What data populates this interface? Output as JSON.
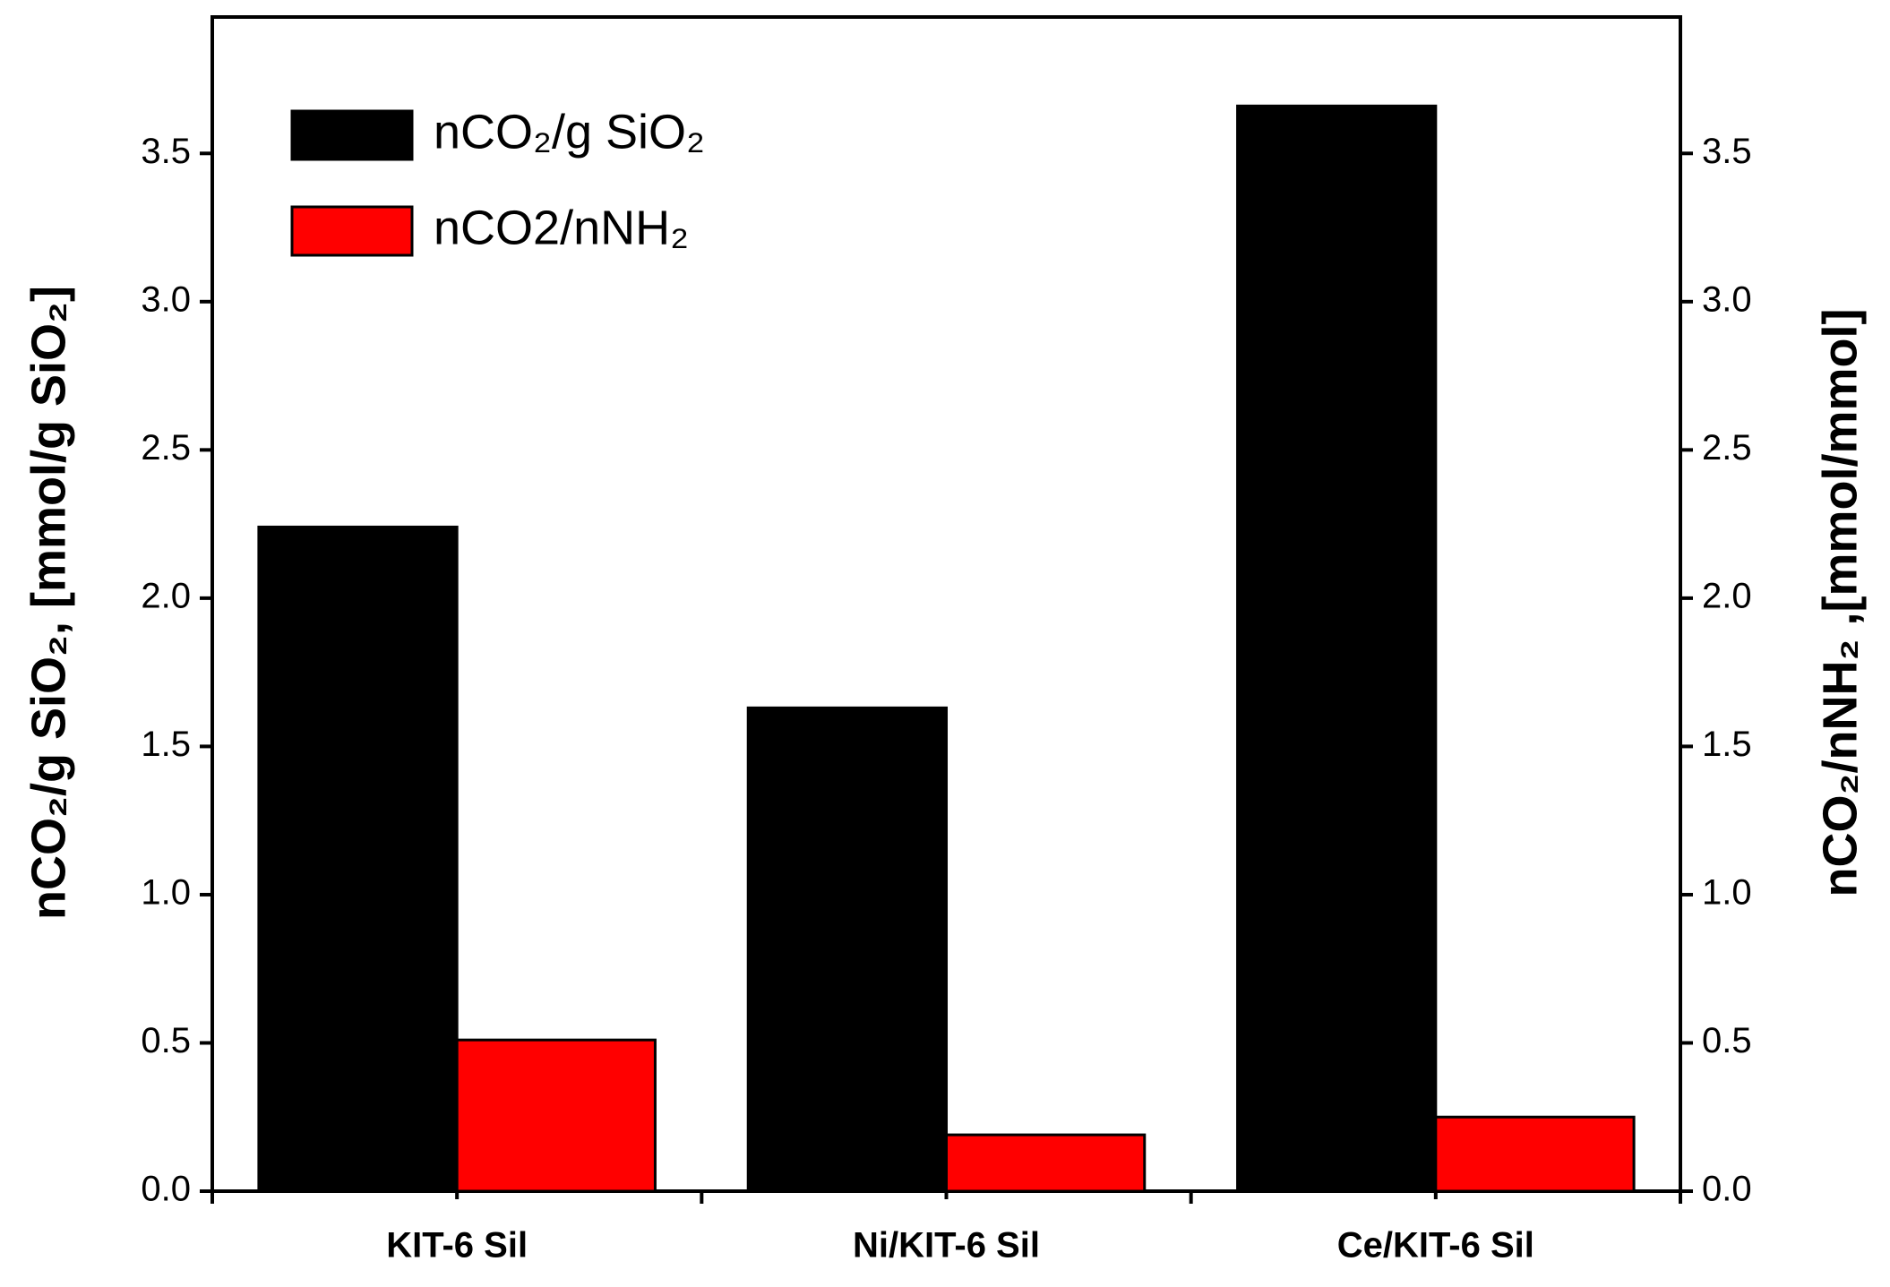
{
  "chart_data": {
    "type": "bar",
    "y_label": "nCO₂/g SiO₂, [mmol/g SiO₂]",
    "y2_label": "nCO₂/nNH₂ ,[mmol/mmol]",
    "categories": [
      "KIT-6 Sil",
      "Ni/KIT-6 Sil",
      "Ce/KIT-6 Sil"
    ],
    "series": [
      {
        "name": "nCO₂/g SiO₂",
        "color": "#000000",
        "values": [
          2.24,
          1.63,
          3.66
        ]
      },
      {
        "name": "nCO2/nNH₂",
        "color": "#ff0000",
        "axis": "y2",
        "values": [
          0.51,
          0.19,
          0.25
        ]
      }
    ],
    "ylim": [
      0,
      3.96
    ],
    "yticks": [
      {
        "value": 0,
        "label": "0.0"
      },
      {
        "value": 0.5,
        "label": "0.5"
      },
      {
        "value": 1,
        "label": "1.0"
      },
      {
        "value": 1.5,
        "label": "1.5"
      },
      {
        "value": 2,
        "label": "2.0"
      },
      {
        "value": 2.5,
        "label": "2.5"
      },
      {
        "value": 3,
        "label": "3.0"
      },
      {
        "value": 3.5,
        "label": "3.5"
      }
    ],
    "y2lim": [
      0,
      3.96
    ],
    "y2ticks": [
      {
        "value": 0,
        "label": "0.0"
      },
      {
        "value": 0.5,
        "label": "0.5"
      },
      {
        "value": 1,
        "label": "1.0"
      },
      {
        "value": 1.5,
        "label": "1.5"
      },
      {
        "value": 2,
        "label": "2.0"
      },
      {
        "value": 2.5,
        "label": "2.5"
      },
      {
        "value": 3,
        "label": "3.0"
      },
      {
        "value": 3.5,
        "label": "3.5"
      }
    ],
    "legend": "top-left"
  }
}
